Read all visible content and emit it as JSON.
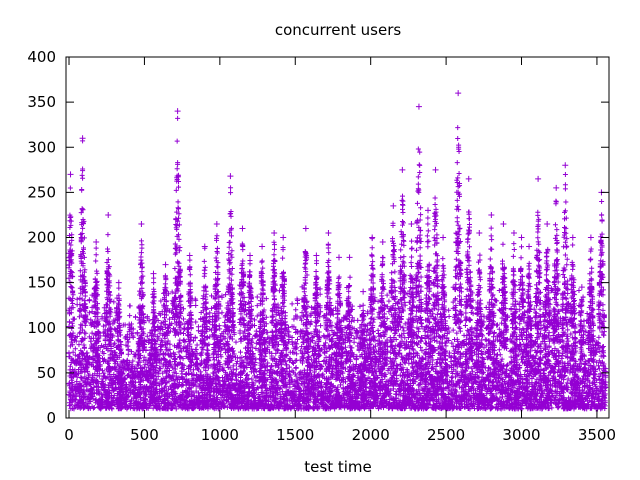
{
  "chart_data": {
    "type": "scatter",
    "title": "concurrent users",
    "xlabel": "test time",
    "ylabel": "",
    "xlim": [
      -20,
      3580
    ],
    "ylim": [
      0,
      400
    ],
    "xticks": [
      0,
      500,
      1000,
      1500,
      2000,
      2500,
      3000,
      3500
    ],
    "yticks": [
      0,
      50,
      100,
      150,
      200,
      250,
      300,
      350,
      400
    ],
    "grid": false,
    "legend": "none",
    "marker": "plus",
    "color": "#9400d3",
    "spikes": [
      {
        "x": 10,
        "y": 270
      },
      {
        "x": 90,
        "y": 310
      },
      {
        "x": 180,
        "y": 195
      },
      {
        "x": 260,
        "y": 225
      },
      {
        "x": 330,
        "y": 150
      },
      {
        "x": 480,
        "y": 215
      },
      {
        "x": 560,
        "y": 160
      },
      {
        "x": 640,
        "y": 170
      },
      {
        "x": 720,
        "y": 340
      },
      {
        "x": 800,
        "y": 180
      },
      {
        "x": 900,
        "y": 190
      },
      {
        "x": 980,
        "y": 215
      },
      {
        "x": 1070,
        "y": 268
      },
      {
        "x": 1150,
        "y": 210
      },
      {
        "x": 1200,
        "y": 180
      },
      {
        "x": 1280,
        "y": 190
      },
      {
        "x": 1360,
        "y": 205
      },
      {
        "x": 1420,
        "y": 200
      },
      {
        "x": 1570,
        "y": 210
      },
      {
        "x": 1640,
        "y": 180
      },
      {
        "x": 1720,
        "y": 205
      },
      {
        "x": 1790,
        "y": 178
      },
      {
        "x": 1860,
        "y": 178
      },
      {
        "x": 1950,
        "y": 140
      },
      {
        "x": 2010,
        "y": 200
      },
      {
        "x": 2080,
        "y": 195
      },
      {
        "x": 2150,
        "y": 235
      },
      {
        "x": 2210,
        "y": 275
      },
      {
        "x": 2270,
        "y": 215
      },
      {
        "x": 2320,
        "y": 345
      },
      {
        "x": 2380,
        "y": 230
      },
      {
        "x": 2430,
        "y": 275
      },
      {
        "x": 2480,
        "y": 200
      },
      {
        "x": 2580,
        "y": 360
      },
      {
        "x": 2650,
        "y": 265
      },
      {
        "x": 2720,
        "y": 205
      },
      {
        "x": 2800,
        "y": 225
      },
      {
        "x": 2880,
        "y": 215
      },
      {
        "x": 2950,
        "y": 205
      },
      {
        "x": 3000,
        "y": 200
      },
      {
        "x": 3050,
        "y": 190
      },
      {
        "x": 3110,
        "y": 265
      },
      {
        "x": 3170,
        "y": 215
      },
      {
        "x": 3230,
        "y": 255
      },
      {
        "x": 3290,
        "y": 280
      },
      {
        "x": 3340,
        "y": 200
      },
      {
        "x": 3400,
        "y": 145
      },
      {
        "x": 3460,
        "y": 200
      },
      {
        "x": 3530,
        "y": 250
      }
    ],
    "base_band": [
      10,
      150
    ]
  }
}
